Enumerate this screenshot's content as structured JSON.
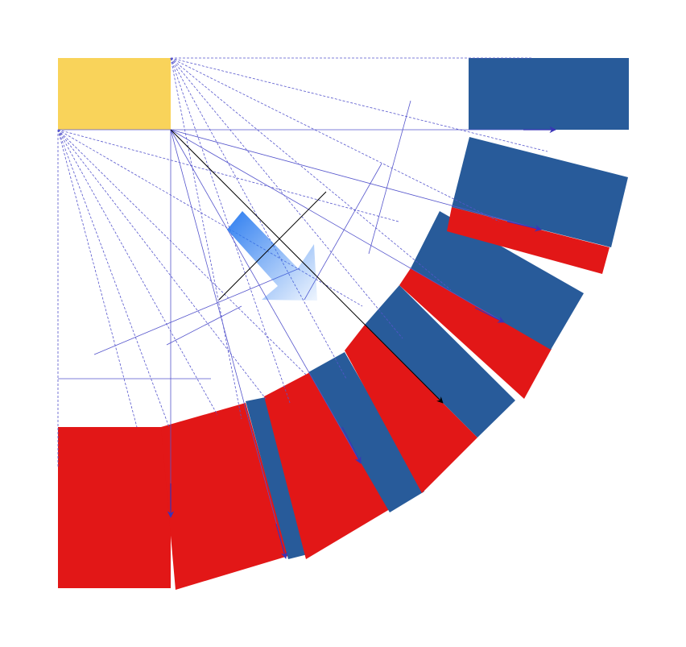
{
  "diagram": {
    "colors": {
      "block_red": "#e21717",
      "block_blue": "#285b9a",
      "corner_yellow": "#f9d35a",
      "construction_line": "#5555cc",
      "vector_arrow": "#3a34b8",
      "main_arrow": "#000000",
      "gradient_arrow": "#2e7ef0"
    },
    "blocks": [
      {
        "name": "block-red-left",
        "color_key": "block_red"
      },
      {
        "name": "block-red-1",
        "color_key": "block_red"
      },
      {
        "name": "block-blue-1",
        "color_key": "block_blue"
      },
      {
        "name": "block-red-2",
        "color_key": "block_red"
      },
      {
        "name": "block-blue-2",
        "color_key": "block_blue"
      },
      {
        "name": "block-red-3",
        "color_key": "block_red"
      },
      {
        "name": "block-blue-3",
        "color_key": "block_blue"
      },
      {
        "name": "block-red-4",
        "color_key": "block_red"
      },
      {
        "name": "block-blue-4",
        "color_key": "block_blue"
      },
      {
        "name": "block-red-5",
        "color_key": "block_red"
      },
      {
        "name": "block-blue-5",
        "color_key": "block_blue"
      },
      {
        "name": "block-blue-top",
        "color_key": "block_blue"
      },
      {
        "name": "block-yellow-corner",
        "color_key": "corner_yellow"
      }
    ]
  }
}
